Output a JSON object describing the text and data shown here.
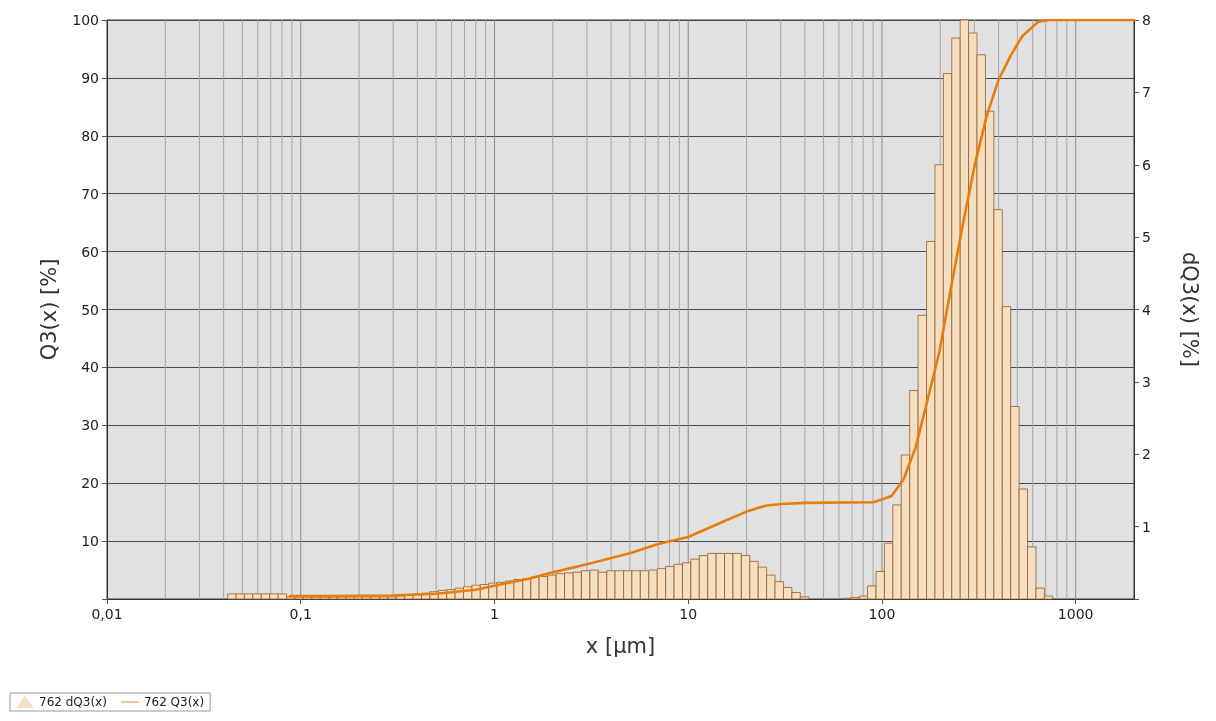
{
  "chart_data": {
    "type": "histogram",
    "xlabel": "x [µm]",
    "ylabel": "Q3(x) [%]",
    "y2label": "dQ3(x) [%]",
    "log": "x",
    "grid": true,
    "legend": "bottom left",
    "marker": "none",
    "xlim": [
      0.01,
      2000
    ],
    "xticks": [
      {
        "value": 0.01,
        "label": "0,01"
      },
      {
        "value": 0.1,
        "label": "0,1"
      },
      1,
      10,
      100,
      1000
    ],
    "ylim": [
      0,
      100
    ],
    "yticks": [
      {
        "value": 0,
        "label": null
      },
      10,
      20,
      30,
      40,
      50,
      60,
      70,
      80,
      90,
      100
    ],
    "y2lim": [
      0,
      8
    ],
    "y2ticks": [
      {
        "value": 0,
        "label": null
      },
      1,
      2,
      3,
      4,
      5,
      6,
      7,
      8
    ],
    "series": [
      {
        "name": "762 dQ3(x)",
        "axis": "y2",
        "color": "#f5dfc3",
        "bins": [
          0.042,
          0.0464,
          0.0512,
          0.0566,
          0.0626,
          0.0692,
          0.0765,
          0.0845,
          0.0934,
          0.103,
          0.114,
          0.126,
          0.14,
          0.154,
          0.171,
          0.189,
          0.208,
          0.23,
          0.255,
          0.281,
          0.311,
          0.344,
          0.38,
          0.42,
          0.464,
          0.513,
          0.567,
          0.626,
          0.692,
          0.765,
          0.845,
          0.934,
          1.03,
          1.14,
          1.26,
          1.4,
          1.54,
          1.7,
          1.88,
          2.08,
          2.3,
          2.55,
          2.81,
          3.11,
          3.43,
          3.8,
          4.19,
          4.64,
          5.12,
          5.66,
          6.26,
          6.92,
          7.65,
          8.45,
          9.34,
          10.32,
          11.41,
          12.61,
          13.94,
          15.4,
          17.02,
          18.81,
          20.79,
          22.98,
          25.39,
          28.06,
          31.02,
          34.28,
          37.88,
          41.87,
          46.27,
          51.14,
          56.52,
          62.47,
          69.04,
          76.3,
          84.3,
          93.2,
          103,
          113.8,
          125.8,
          139.1,
          153.7,
          169.9,
          187.8,
          207.5,
          229.3,
          253.5,
          280.1,
          309.6,
          342.2,
          378.2,
          418,
          461.9,
          510.5,
          564.2,
          623.6,
          689.2,
          761.7
        ],
        "values": [
          0.07,
          0.07,
          0.07,
          0.07,
          0.07,
          0.07,
          0.07,
          0.03,
          0.03,
          0.03,
          0.03,
          0.03,
          0.03,
          0.03,
          0.03,
          0.03,
          0.03,
          0.03,
          0.03,
          0.03,
          0.04,
          0.05,
          0.07,
          0.08,
          0.1,
          0.12,
          0.13,
          0.15,
          0.17,
          0.19,
          0.2,
          0.22,
          0.23,
          0.25,
          0.27,
          0.28,
          0.3,
          0.31,
          0.33,
          0.35,
          0.36,
          0.37,
          0.39,
          0.4,
          0.37,
          0.39,
          0.39,
          0.39,
          0.39,
          0.39,
          0.4,
          0.42,
          0.45,
          0.48,
          0.5,
          0.55,
          0.6,
          0.63,
          0.63,
          0.63,
          0.63,
          0.6,
          0.52,
          0.44,
          0.33,
          0.24,
          0.16,
          0.09,
          0.03,
          0,
          0,
          0,
          0,
          0.01,
          0.02,
          0.04,
          0.18,
          0.38,
          0.77,
          1.3,
          1.99,
          2.88,
          3.92,
          4.94,
          6.0,
          7.26,
          7.75,
          8.0,
          7.82,
          7.52,
          6.74,
          5.38,
          4.04,
          2.66,
          1.52,
          0.72,
          0.15,
          0.04
        ]
      },
      {
        "name": "762 Q3(x)",
        "type": "line",
        "color": "#e87d0d",
        "x": [
          0.088,
          0.15,
          0.3,
          0.5,
          0.8,
          1,
          1.5,
          2,
          3,
          5,
          7,
          10,
          15,
          20,
          25,
          30,
          40,
          90,
          100,
          112,
          129,
          149,
          172,
          198,
          227,
          262,
          302,
          347,
          399,
          461,
          530,
          640,
          737,
          2000
        ],
        "values": [
          0.5,
          0.5,
          0.6,
          0.9,
          1.6,
          2.3,
          3.5,
          4.6,
          6,
          7.9,
          9.5,
          10.7,
          13.3,
          15.1,
          16.1,
          16.4,
          16.6,
          16.7,
          17.2,
          17.8,
          20.6,
          26.1,
          34.4,
          42.7,
          53.7,
          64.8,
          75.1,
          83.4,
          89.6,
          93.8,
          97.2,
          99.7,
          100,
          100
        ]
      }
    ]
  }
}
